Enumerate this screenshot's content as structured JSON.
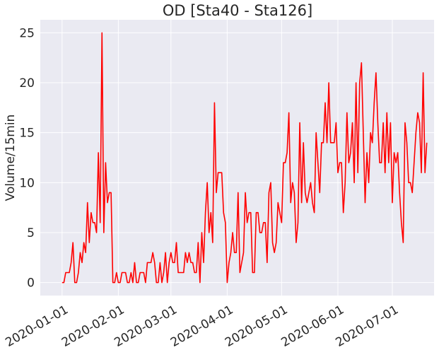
{
  "colors": {
    "plot_background": "#EAEAF2",
    "grid": "#FFFFFF",
    "series_line": "#FF0000",
    "text": "#262626"
  },
  "chart_data": {
    "type": "line",
    "title": "OD [Sta40 - Sta126]",
    "xlabel": "",
    "ylabel": "Volume/15min",
    "x_start_date": "2020-01-01",
    "xlim": [
      "2019-12-20",
      "2020-07-24"
    ],
    "ylim": [
      -1.3,
      26.3
    ],
    "grid": true,
    "yticks": [
      0,
      5,
      10,
      15,
      20,
      25
    ],
    "ytick_labels": [
      "0",
      "5",
      "10",
      "15",
      "20",
      "25"
    ],
    "xticks": [
      "2020-01-01",
      "2020-02-01",
      "2020-03-01",
      "2020-04-01",
      "2020-05-01",
      "2020-06-01",
      "2020-07-01"
    ],
    "xtick_labels": [
      "2020-01-01",
      "2020-02-01",
      "2020-03-01",
      "2020-04-01",
      "2020-05-01",
      "2020-06-01",
      "2020-07-01"
    ],
    "series": [
      {
        "name": "",
        "color": "#FF0000",
        "values": [
          0,
          0,
          1,
          1,
          1,
          2,
          4,
          0,
          0,
          1,
          3,
          2,
          4,
          3,
          8,
          4,
          7,
          6,
          6,
          5,
          13,
          6,
          25,
          5,
          12,
          8,
          9,
          9,
          0,
          0,
          1,
          0,
          0,
          1,
          1,
          1,
          0,
          0,
          1,
          0,
          2,
          0,
          0,
          1,
          1,
          1,
          0,
          2,
          2,
          2,
          3,
          2,
          0,
          0,
          2,
          0,
          1,
          3,
          0,
          2,
          3,
          2,
          2,
          4,
          1,
          1,
          1,
          1,
          3,
          2,
          3,
          2,
          2,
          1,
          1,
          4,
          0,
          5,
          2,
          7,
          10,
          5,
          7,
          4,
          18,
          9,
          11,
          11,
          11,
          7,
          6,
          0,
          2,
          3,
          5,
          3,
          3,
          9,
          1,
          2,
          3,
          9,
          6,
          7,
          7,
          1,
          1,
          7,
          7,
          5,
          5,
          6,
          6,
          2,
          9,
          10,
          4,
          3,
          4,
          8,
          7,
          6,
          12,
          12,
          13,
          17,
          8,
          10,
          9,
          4,
          6,
          16,
          8,
          14,
          9,
          8,
          9,
          10,
          8,
          7,
          15,
          12,
          9,
          14,
          14,
          18,
          14,
          20,
          14,
          14,
          14,
          16,
          11,
          12,
          12,
          7,
          10,
          17,
          12,
          13,
          16,
          10,
          20,
          11,
          20,
          22,
          15,
          8,
          13,
          10,
          15,
          14,
          18,
          21,
          16,
          12,
          12,
          16,
          11,
          17,
          12,
          16,
          8,
          13,
          12,
          13,
          9,
          6,
          4,
          16,
          14,
          10,
          10,
          9,
          12,
          15,
          17,
          16,
          11,
          21,
          11,
          14
        ]
      }
    ]
  }
}
